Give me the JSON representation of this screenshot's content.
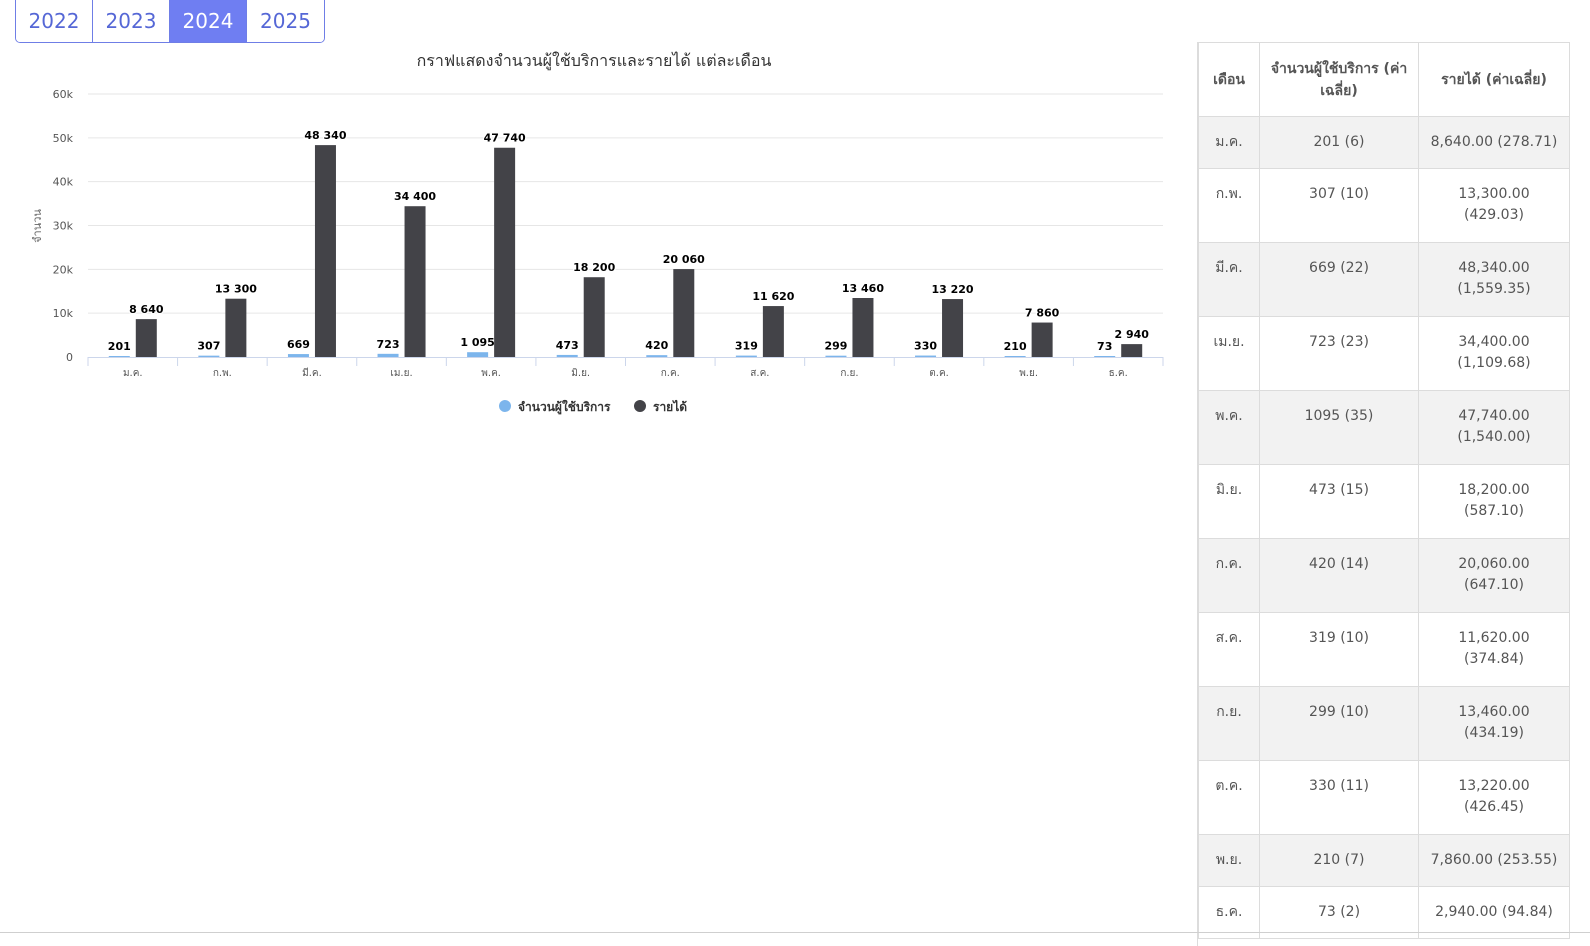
{
  "year_tabs": [
    {
      "label": "2022",
      "active": false
    },
    {
      "label": "2023",
      "active": false
    },
    {
      "label": "2024",
      "active": true
    },
    {
      "label": "2025",
      "active": false
    }
  ],
  "colors": {
    "users": "#7cb5ec",
    "revenue": "#434348",
    "accent": "#6f7ef2"
  },
  "chart_data": {
    "type": "bar",
    "title": "กราฟแสดงจำนวนผู้ใช้บริการและรายได้ แต่ละเดือน",
    "ylabel": "จำนวน",
    "ylim": [
      0,
      60000
    ],
    "yticks": [
      "0",
      "10k",
      "20k",
      "30k",
      "40k",
      "50k",
      "60k"
    ],
    "grid": true,
    "legend_position": "bottom",
    "categories": [
      "ม.ค.",
      "ก.พ.",
      "มี.ค.",
      "เม.ย.",
      "พ.ค.",
      "มิ.ย.",
      "ก.ค.",
      "ส.ค.",
      "ก.ย.",
      "ต.ค.",
      "พ.ย.",
      "ธ.ค."
    ],
    "series": [
      {
        "name": "จำนวนผู้ใช้บริการ",
        "values": [
          201,
          307,
          669,
          723,
          1095,
          473,
          420,
          319,
          299,
          330,
          210,
          73
        ],
        "labels": [
          "201",
          "307",
          "669",
          "723",
          "1 095",
          "473",
          "420",
          "319",
          "299",
          "330",
          "210",
          "73"
        ]
      },
      {
        "name": "รายได้",
        "values": [
          8640,
          13300,
          48340,
          34400,
          47740,
          18200,
          20060,
          11620,
          13460,
          13220,
          7860,
          2940
        ],
        "labels": [
          "8 640",
          "13 300",
          "48 340",
          "34 400",
          "47 740",
          "18 200",
          "20 060",
          "11 620",
          "13 460",
          "13 220",
          "7 860",
          "2 940"
        ]
      }
    ]
  },
  "table": {
    "headers": [
      "เดือน",
      "จำนวนผู้ใช้บริการ (ค่าเฉลี่ย)",
      "รายได้ (ค่าเฉลี่ย)"
    ],
    "rows": [
      {
        "month": "ม.ค.",
        "users": "201 (6)",
        "revenue": "8,640.00 (278.71)"
      },
      {
        "month": "ก.พ.",
        "users": "307 (10)",
        "revenue": "13,300.00 (429.03)"
      },
      {
        "month": "มี.ค.",
        "users": "669 (22)",
        "revenue": "48,340.00 (1,559.35)"
      },
      {
        "month": "เม.ย.",
        "users": "723 (23)",
        "revenue": "34,400.00 (1,109.68)"
      },
      {
        "month": "พ.ค.",
        "users": "1095 (35)",
        "revenue": "47,740.00 (1,540.00)"
      },
      {
        "month": "มิ.ย.",
        "users": "473 (15)",
        "revenue": "18,200.00 (587.10)"
      },
      {
        "month": "ก.ค.",
        "users": "420 (14)",
        "revenue": "20,060.00 (647.10)"
      },
      {
        "month": "ส.ค.",
        "users": "319 (10)",
        "revenue": "11,620.00 (374.84)"
      },
      {
        "month": "ก.ย.",
        "users": "299 (10)",
        "revenue": "13,460.00 (434.19)"
      },
      {
        "month": "ต.ค.",
        "users": "330 (11)",
        "revenue": "13,220.00 (426.45)"
      },
      {
        "month": "พ.ย.",
        "users": "210 (7)",
        "revenue": "7,860.00 (253.55)"
      },
      {
        "month": "ธ.ค.",
        "users": "73 (2)",
        "revenue": "2,940.00 (94.84)"
      }
    ]
  }
}
